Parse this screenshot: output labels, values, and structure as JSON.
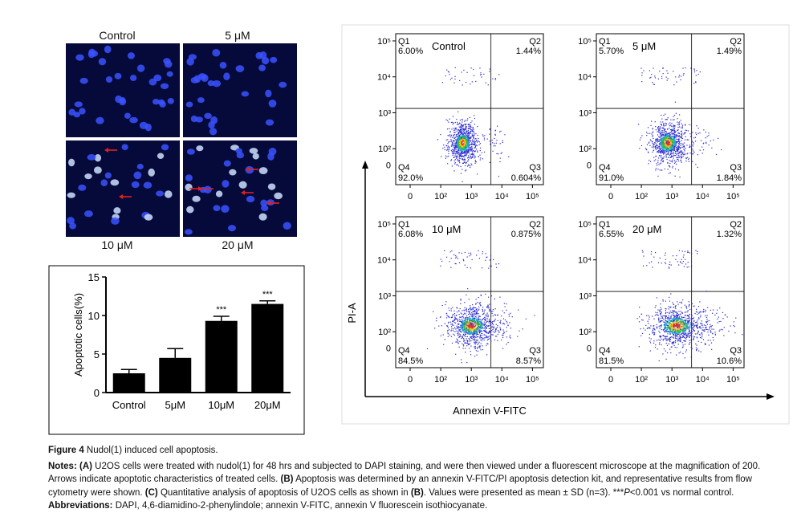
{
  "micrographs": [
    {
      "label": "Control"
    },
    {
      "label": "5 μM"
    },
    {
      "label": "10 μM"
    },
    {
      "label": "20 μM"
    }
  ],
  "chart_data": [
    {
      "type": "bar",
      "categories": [
        "Control",
        "5μM",
        "10μM",
        "20μM"
      ],
      "values": [
        2.5,
        4.5,
        9.3,
        11.5
      ],
      "errors": [
        0.5,
        1.2,
        0.6,
        0.4
      ],
      "annotations": [
        "",
        "",
        "***",
        "***"
      ],
      "ylabel": "Apoptotic cells(%)",
      "ylim": [
        0,
        15
      ],
      "yticks": [
        "0",
        "5",
        "10",
        "15"
      ]
    },
    {
      "type": "scatter",
      "xlabel": "Annexin V-FITC",
      "ylabel": "PI-A",
      "log_scale": true,
      "x_ticks": [
        "0",
        "10²",
        "10³",
        "10⁴",
        "10⁵"
      ],
      "y_ticks": [
        "10²",
        "10³",
        "10⁴",
        "10⁵"
      ],
      "panels": [
        {
          "title": "Control",
          "q1": "6.00%",
          "q2": "1.44%",
          "q3": "0.604%",
          "q4": "92.0%"
        },
        {
          "title": "5 μM",
          "q1": "5.70%",
          "q2": "1.49%",
          "q3": "1.84%",
          "q4": "91.0%"
        },
        {
          "title": "10 μM",
          "q1": "6.08%",
          "q2": "0.875%",
          "q3": "8.57%",
          "q4": "84.5%"
        },
        {
          "title": "20 μM",
          "q1": "6.55%",
          "q2": "1.32%",
          "q3": "10.6%",
          "q4": "81.5%"
        }
      ]
    }
  ],
  "caption": {
    "figure_label": "Figure 4",
    "figure_title": " Nudol(1) induced cell apoptosis.",
    "notes_label": "Notes:",
    "notes_a_label": "(A)",
    "notes_a": " U2OS cells were treated with nudol(1) for 48 hrs and subjected to DAPI staining, and were then viewed under a fluorescent microscope at the magnification of 200. Arrows indicate apoptotic characteristics of treated cells. ",
    "notes_b_label": "(B)",
    "notes_b": " Apoptosis was determined by an annexin V-FITC/PI apoptosis detection kit, and representative results from flow cytometry were shown. ",
    "notes_c_label": "(C)",
    "notes_c": " Quantitative analysis of apoptosis of U2OS cells as shown in ",
    "notes_c_ref": "(B)",
    "notes_c_end": ". Values were presented as mean ± SD (n=3). ***",
    "notes_p": "P",
    "notes_end": "<0.001 vs normal control.",
    "abbr_label": "Abbreviations:",
    "abbr": " DAPI, 4,6-diamidino-2-phenylindole; annexin V-FITC, annexin V fluorescein isothiocyanate."
  },
  "colors": {
    "nuclei": "#3b52ff",
    "bright_nuclei": "#cfe0ff",
    "arrows": "#e02020",
    "dots": "#2a2ad0",
    "axis": "#000000"
  }
}
